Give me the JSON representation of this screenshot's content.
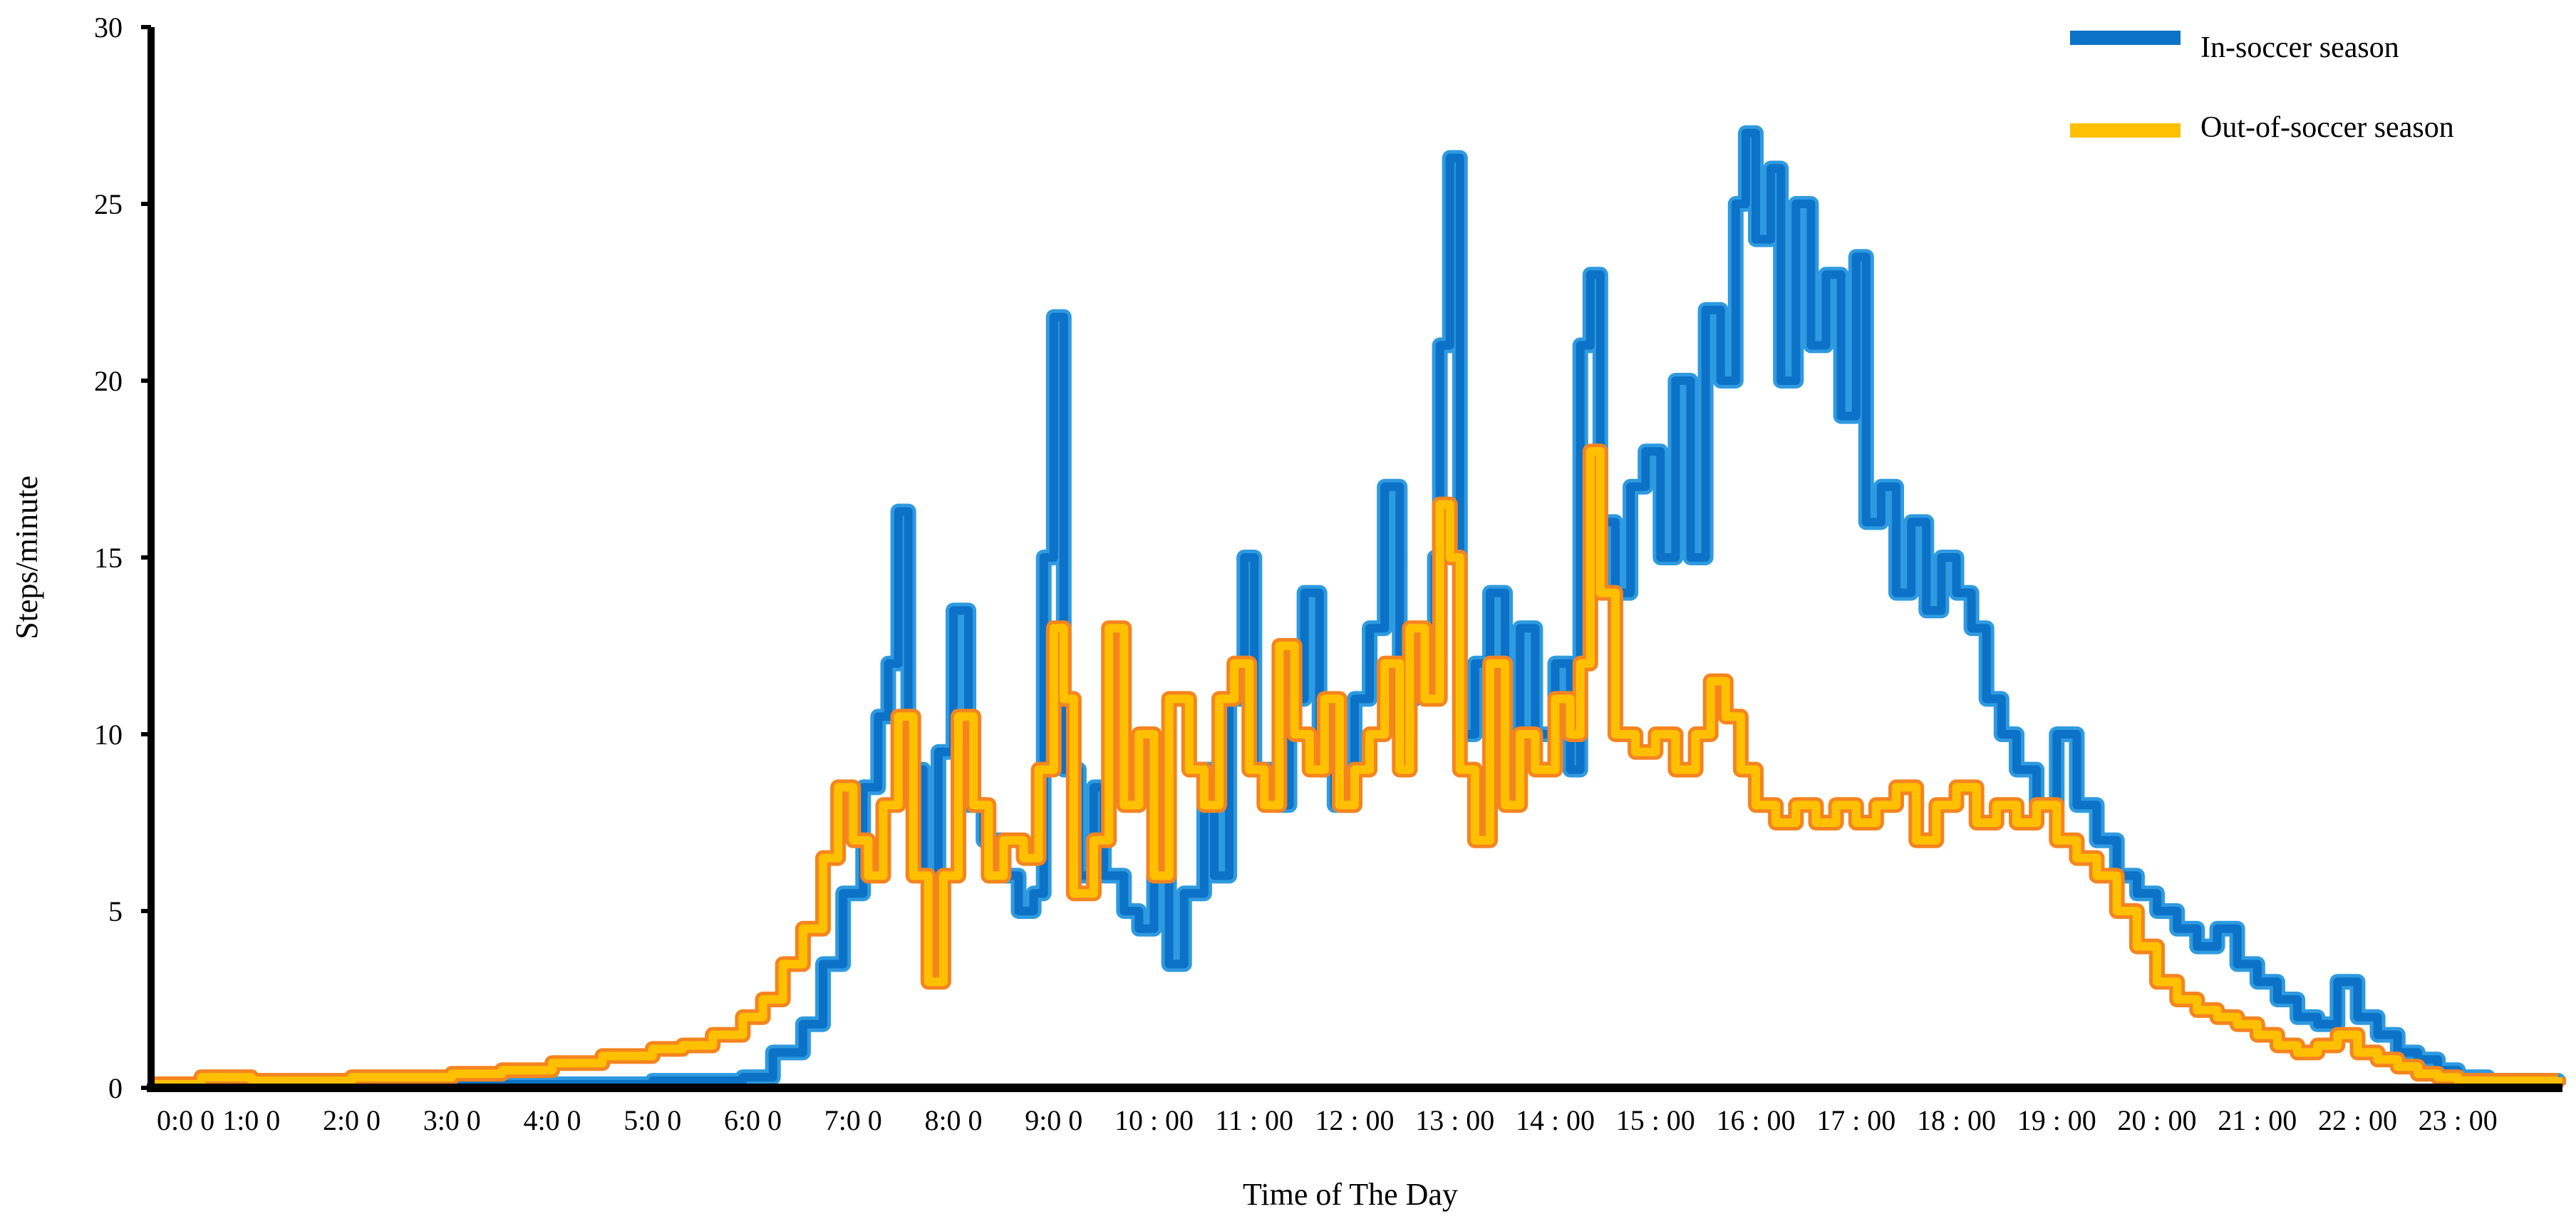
{
  "chart_data": {
    "type": "line",
    "title": "",
    "xlabel": "Time of The Day",
    "ylabel": "Steps/minute",
    "xlim": [
      0,
      24
    ],
    "ylim": [
      0,
      30
    ],
    "grid": false,
    "legend_position": "top-right",
    "y_ticks": [
      "0",
      "5",
      "10",
      "15",
      "20",
      "25",
      "30"
    ],
    "x_ticks": [
      "0:0 0",
      "1:0 0",
      "2:0 0",
      "3:0 0",
      "4:0 0",
      "5:0 0",
      "6:0 0",
      "7:0 0",
      "8:0 0",
      "9:0 0",
      "10 : 00",
      "11 : 00",
      "12 : 00",
      "13 : 00",
      "14 : 00",
      "15 : 00",
      "16 : 00",
      "17 : 00",
      "18 : 00",
      "19 : 00",
      "20 : 00",
      "21 : 00",
      "22 : 00",
      "23 : 00"
    ],
    "series": [
      {
        "name": "In-soccer season",
        "color": "#0B72C7",
        "shade": "#2E9AE0",
        "points": [
          [
            0,
            0.1
          ],
          [
            0.5,
            0.2
          ],
          [
            1,
            0.1
          ],
          [
            1.5,
            0.1
          ],
          [
            2,
            0.1
          ],
          [
            2.5,
            0.1
          ],
          [
            3,
            0.1
          ],
          [
            3.5,
            0.1
          ],
          [
            4,
            0.1
          ],
          [
            4.5,
            0.1
          ],
          [
            5,
            0.2
          ],
          [
            5.5,
            0.2
          ],
          [
            5.9,
            0.3
          ],
          [
            6.2,
            1.0
          ],
          [
            6.5,
            1.8
          ],
          [
            6.7,
            3.5
          ],
          [
            6.9,
            5.5
          ],
          [
            7.1,
            8.5
          ],
          [
            7.25,
            10.5
          ],
          [
            7.35,
            12
          ],
          [
            7.45,
            16.3
          ],
          [
            7.55,
            9
          ],
          [
            7.7,
            6
          ],
          [
            7.85,
            9.5
          ],
          [
            8.0,
            13.5
          ],
          [
            8.15,
            8
          ],
          [
            8.3,
            7
          ],
          [
            8.5,
            6
          ],
          [
            8.65,
            5
          ],
          [
            8.8,
            5.5
          ],
          [
            8.9,
            15
          ],
          [
            9.0,
            21.8
          ],
          [
            9.1,
            9
          ],
          [
            9.25,
            6
          ],
          [
            9.4,
            8.5
          ],
          [
            9.5,
            6
          ],
          [
            9.7,
            5
          ],
          [
            9.85,
            4.5
          ],
          [
            10.0,
            6
          ],
          [
            10.15,
            3.5
          ],
          [
            10.3,
            5.5
          ],
          [
            10.5,
            9
          ],
          [
            10.6,
            6
          ],
          [
            10.75,
            11
          ],
          [
            10.9,
            15
          ],
          [
            11.0,
            9
          ],
          [
            11.2,
            8
          ],
          [
            11.35,
            11
          ],
          [
            11.5,
            14
          ],
          [
            11.65,
            9
          ],
          [
            11.8,
            8
          ],
          [
            12.0,
            11
          ],
          [
            12.15,
            13
          ],
          [
            12.3,
            17
          ],
          [
            12.45,
            11
          ],
          [
            12.6,
            12
          ],
          [
            12.8,
            15
          ],
          [
            12.85,
            21
          ],
          [
            12.95,
            26.3
          ],
          [
            13.05,
            10
          ],
          [
            13.2,
            12
          ],
          [
            13.35,
            14
          ],
          [
            13.5,
            9
          ],
          [
            13.65,
            13
          ],
          [
            13.8,
            10
          ],
          [
            14.0,
            12
          ],
          [
            14.15,
            9
          ],
          [
            14.25,
            21
          ],
          [
            14.35,
            23
          ],
          [
            14.45,
            16
          ],
          [
            14.6,
            14
          ],
          [
            14.75,
            17
          ],
          [
            14.9,
            18
          ],
          [
            15.05,
            15
          ],
          [
            15.2,
            20
          ],
          [
            15.35,
            15
          ],
          [
            15.5,
            22
          ],
          [
            15.65,
            20
          ],
          [
            15.8,
            25
          ],
          [
            15.9,
            27
          ],
          [
            16.0,
            24
          ],
          [
            16.15,
            26
          ],
          [
            16.25,
            20
          ],
          [
            16.4,
            25
          ],
          [
            16.55,
            21
          ],
          [
            16.7,
            23
          ],
          [
            16.85,
            19
          ],
          [
            17.0,
            23.5
          ],
          [
            17.1,
            16
          ],
          [
            17.25,
            17
          ],
          [
            17.4,
            14
          ],
          [
            17.55,
            16
          ],
          [
            17.7,
            13.5
          ],
          [
            17.85,
            15
          ],
          [
            18.0,
            14
          ],
          [
            18.15,
            13
          ],
          [
            18.3,
            11
          ],
          [
            18.45,
            10
          ],
          [
            18.6,
            9
          ],
          [
            18.8,
            8
          ],
          [
            19.0,
            10
          ],
          [
            19.2,
            8
          ],
          [
            19.4,
            7
          ],
          [
            19.6,
            6
          ],
          [
            19.8,
            5.5
          ],
          [
            20.0,
            5
          ],
          [
            20.2,
            4.5
          ],
          [
            20.4,
            4
          ],
          [
            20.6,
            4.5
          ],
          [
            20.8,
            3.5
          ],
          [
            21.0,
            3
          ],
          [
            21.2,
            2.5
          ],
          [
            21.4,
            2
          ],
          [
            21.6,
            1.8
          ],
          [
            21.8,
            3
          ],
          [
            22.0,
            2
          ],
          [
            22.2,
            1.5
          ],
          [
            22.4,
            1.0
          ],
          [
            22.6,
            0.8
          ],
          [
            22.8,
            0.5
          ],
          [
            23.0,
            0.3
          ],
          [
            23.3,
            0.2
          ],
          [
            23.6,
            0.2
          ],
          [
            24,
            0.1
          ]
        ]
      },
      {
        "name": "Out-of-soccer season",
        "color": "#FFC000",
        "shade": "#F5841F",
        "points": [
          [
            0,
            0.1
          ],
          [
            0.5,
            0.3
          ],
          [
            1,
            0.2
          ],
          [
            1.5,
            0.2
          ],
          [
            2,
            0.3
          ],
          [
            2.5,
            0.3
          ],
          [
            3,
            0.4
          ],
          [
            3.5,
            0.5
          ],
          [
            4,
            0.7
          ],
          [
            4.5,
            0.9
          ],
          [
            5,
            1.1
          ],
          [
            5.3,
            1.2
          ],
          [
            5.6,
            1.5
          ],
          [
            5.9,
            2.0
          ],
          [
            6.1,
            2.5
          ],
          [
            6.3,
            3.5
          ],
          [
            6.5,
            4.5
          ],
          [
            6.7,
            6.5
          ],
          [
            6.85,
            8.5
          ],
          [
            7.0,
            7
          ],
          [
            7.15,
            6
          ],
          [
            7.3,
            8
          ],
          [
            7.45,
            10.5
          ],
          [
            7.6,
            6
          ],
          [
            7.75,
            3
          ],
          [
            7.9,
            6
          ],
          [
            8.05,
            10.5
          ],
          [
            8.2,
            8
          ],
          [
            8.35,
            6
          ],
          [
            8.5,
            7
          ],
          [
            8.7,
            6.5
          ],
          [
            8.85,
            9
          ],
          [
            9.0,
            13
          ],
          [
            9.1,
            11
          ],
          [
            9.2,
            5.5
          ],
          [
            9.4,
            7
          ],
          [
            9.55,
            13
          ],
          [
            9.7,
            8
          ],
          [
            9.85,
            10
          ],
          [
            10.0,
            6
          ],
          [
            10.15,
            11
          ],
          [
            10.35,
            9
          ],
          [
            10.5,
            8
          ],
          [
            10.65,
            11
          ],
          [
            10.8,
            12
          ],
          [
            10.95,
            9
          ],
          [
            11.1,
            8
          ],
          [
            11.25,
            12.5
          ],
          [
            11.4,
            10
          ],
          [
            11.55,
            9
          ],
          [
            11.7,
            11
          ],
          [
            11.85,
            8
          ],
          [
            12.0,
            9
          ],
          [
            12.15,
            10
          ],
          [
            12.3,
            12
          ],
          [
            12.45,
            9
          ],
          [
            12.55,
            13
          ],
          [
            12.7,
            11
          ],
          [
            12.85,
            16.5
          ],
          [
            12.95,
            15
          ],
          [
            13.05,
            9
          ],
          [
            13.2,
            7
          ],
          [
            13.35,
            12
          ],
          [
            13.5,
            8
          ],
          [
            13.65,
            10
          ],
          [
            13.8,
            9
          ],
          [
            14.0,
            11
          ],
          [
            14.15,
            10
          ],
          [
            14.25,
            12
          ],
          [
            14.35,
            18
          ],
          [
            14.45,
            14
          ],
          [
            14.6,
            10
          ],
          [
            14.8,
            9.5
          ],
          [
            15.0,
            10
          ],
          [
            15.2,
            9
          ],
          [
            15.4,
            10
          ],
          [
            15.55,
            11.5
          ],
          [
            15.7,
            10.5
          ],
          [
            15.85,
            9
          ],
          [
            16.0,
            8
          ],
          [
            16.2,
            7.5
          ],
          [
            16.4,
            8
          ],
          [
            16.6,
            7.5
          ],
          [
            16.8,
            8
          ],
          [
            17.0,
            7.5
          ],
          [
            17.2,
            8
          ],
          [
            17.4,
            8.5
          ],
          [
            17.6,
            7
          ],
          [
            17.8,
            8
          ],
          [
            18.0,
            8.5
          ],
          [
            18.2,
            7.5
          ],
          [
            18.4,
            8
          ],
          [
            18.6,
            7.5
          ],
          [
            18.8,
            8
          ],
          [
            19.0,
            7
          ],
          [
            19.2,
            6.5
          ],
          [
            19.4,
            6
          ],
          [
            19.6,
            5
          ],
          [
            19.8,
            4
          ],
          [
            20.0,
            3
          ],
          [
            20.2,
            2.5
          ],
          [
            20.4,
            2.2
          ],
          [
            20.6,
            2
          ],
          [
            20.8,
            1.8
          ],
          [
            21.0,
            1.5
          ],
          [
            21.2,
            1.2
          ],
          [
            21.4,
            1.0
          ],
          [
            21.6,
            1.2
          ],
          [
            21.8,
            1.5
          ],
          [
            22.0,
            1.0
          ],
          [
            22.2,
            0.8
          ],
          [
            22.4,
            0.6
          ],
          [
            22.6,
            0.4
          ],
          [
            22.8,
            0.3
          ],
          [
            23.0,
            0.2
          ],
          [
            23.3,
            0.2
          ],
          [
            23.6,
            0.2
          ],
          [
            24,
            0.3
          ]
        ]
      }
    ]
  }
}
